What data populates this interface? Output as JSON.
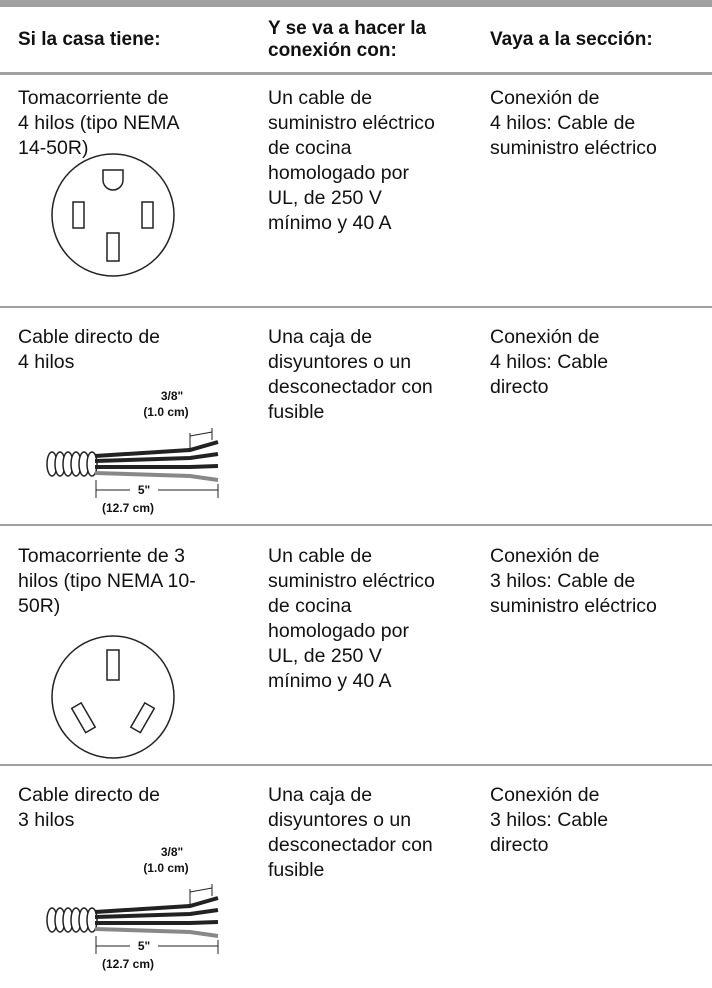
{
  "table": {
    "header": [
      [
        "Si la casa tiene:"
      ],
      [
        "Y se va a hacer la",
        "conexión con:"
      ],
      [
        "Vaya a la sección:"
      ]
    ],
    "rows": [
      {
        "cells": [
          [
            "Tomacorriente de",
            "4 hilos (tipo NEMA",
            "14-50R)"
          ],
          [
            "Un cable de",
            "suministro eléctrico",
            "de cocina",
            "homologado por",
            "UL, de 250 V",
            "mínimo y 40 A"
          ],
          [
            "Conexión de",
            "4 hilos: Cable de",
            "suministro eléctrico"
          ]
        ]
      },
      {
        "cells": [
          [
            "Cable directo de",
            "4 hilos"
          ],
          [
            "Una caja de",
            "disyuntores o un",
            "desconectador con",
            "fusible"
          ],
          [
            "Conexión de",
            "4 hilos: Cable",
            "directo"
          ]
        ],
        "figure_labels": [
          "3/8\"",
          "(1.0 cm)",
          "5\"",
          "(12.7 cm)"
        ]
      },
      {
        "cells": [
          [
            "Tomacorriente de 3",
            "hilos (tipo NEMA 10-",
            "50R)"
          ],
          [
            "Un cable de",
            "suministro eléctrico",
            "de cocina",
            "homologado por",
            "UL, de 250 V",
            "mínimo y 40 A"
          ],
          [
            "Conexión de",
            "3 hilos: Cable de",
            "suministro eléctrico"
          ]
        ]
      },
      {
        "cells": [
          [
            "Cable directo de",
            "3 hilos"
          ],
          [
            "Una caja de",
            "disyuntores o un",
            "desconectador con",
            "fusible"
          ],
          [
            "Conexión de",
            "3 hilos: Cable",
            "directo"
          ]
        ],
        "figure_labels": [
          "3/8\"",
          "(1.0 cm)",
          "5\"",
          "(12.7 cm)"
        ]
      }
    ]
  }
}
